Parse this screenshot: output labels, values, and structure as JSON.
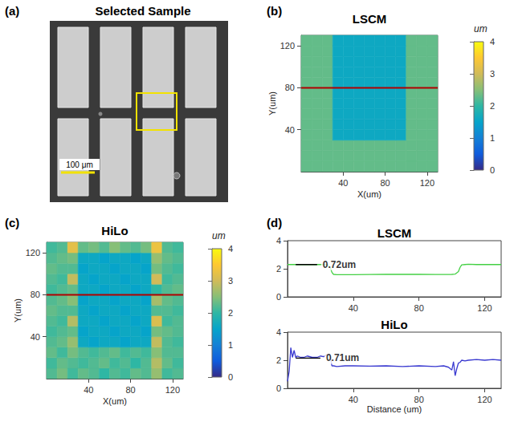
{
  "image_panel": {
    "panel": "(a)",
    "title": "Selected Sample",
    "scale_bar_label": "100 μm"
  },
  "chart_data": [
    {
      "panel": "(b)",
      "type": "heatmap",
      "title": "LSCM",
      "x_label": "X(um)",
      "y_label": "Y(um)",
      "x": [
        5,
        15,
        25,
        35,
        45,
        55,
        65,
        75,
        85,
        95,
        105,
        115,
        125
      ],
      "y": [
        5,
        15,
        25,
        35,
        45,
        55,
        65,
        75,
        85,
        95,
        105,
        115,
        125
      ],
      "cells": [
        [
          2.3,
          2.3,
          2.3,
          2.3,
          2.3,
          2.3,
          2.3,
          2.3,
          2.3,
          2.3,
          2.3,
          2.3,
          2.3
        ],
        [
          2.3,
          2.3,
          2.3,
          2.3,
          2.3,
          2.3,
          2.3,
          2.3,
          2.3,
          2.3,
          2.3,
          2.3,
          2.3
        ],
        [
          2.3,
          2.3,
          2.3,
          2.3,
          2.3,
          2.3,
          2.3,
          2.3,
          2.3,
          2.3,
          2.3,
          2.3,
          2.3
        ],
        [
          2.3,
          2.3,
          2.3,
          1.6,
          1.6,
          1.6,
          1.6,
          1.6,
          1.6,
          1.6,
          2.3,
          2.3,
          2.3
        ],
        [
          2.3,
          2.3,
          2.3,
          1.6,
          1.6,
          1.6,
          1.6,
          1.6,
          1.6,
          1.6,
          2.3,
          2.3,
          2.3
        ],
        [
          2.3,
          2.3,
          2.3,
          1.6,
          1.6,
          1.6,
          1.6,
          1.6,
          1.6,
          1.6,
          2.3,
          2.3,
          2.3
        ],
        [
          2.3,
          2.3,
          2.3,
          1.6,
          1.6,
          1.6,
          1.6,
          1.6,
          1.6,
          1.6,
          2.3,
          2.3,
          2.3
        ],
        [
          2.3,
          2.3,
          2.3,
          1.6,
          1.6,
          1.6,
          1.6,
          1.6,
          1.6,
          1.6,
          2.3,
          2.3,
          2.3
        ],
        [
          2.3,
          2.3,
          2.3,
          1.6,
          1.6,
          1.6,
          1.6,
          1.6,
          1.6,
          1.6,
          2.3,
          2.3,
          2.3
        ],
        [
          2.3,
          2.3,
          2.3,
          1.6,
          1.6,
          1.6,
          1.6,
          1.6,
          1.6,
          1.6,
          2.3,
          2.3,
          2.3
        ],
        [
          2.3,
          2.3,
          2.3,
          1.6,
          1.6,
          1.6,
          1.6,
          1.6,
          1.6,
          1.6,
          2.3,
          2.3,
          2.3
        ],
        [
          2.3,
          2.3,
          2.3,
          1.6,
          1.6,
          1.6,
          1.6,
          1.6,
          1.6,
          1.6,
          2.3,
          2.3,
          2.3
        ],
        [
          2.3,
          2.3,
          2.3,
          1.6,
          1.6,
          1.6,
          1.6,
          1.6,
          1.6,
          1.6,
          2.3,
          2.3,
          2.3
        ]
      ],
      "xlim": [
        0,
        130
      ],
      "ylim": [
        0,
        130
      ],
      "xticks": [
        40,
        80,
        120
      ],
      "yticks": [
        40,
        80,
        120
      ],
      "colorbar": {
        "label": "um",
        "range": [
          0,
          4
        ],
        "ticks": [
          0,
          1,
          2,
          3,
          4
        ]
      },
      "profile_line": {
        "color": "#b00000",
        "x": [
          0,
          130
        ],
        "y": [
          80,
          80
        ]
      }
    },
    {
      "panel": "(c)",
      "type": "heatmap",
      "title": "HiLo",
      "x_label": "X(um)",
      "y_label": "Y(um)",
      "x": [
        5,
        15,
        25,
        35,
        45,
        55,
        65,
        75,
        85,
        95,
        105,
        115,
        125
      ],
      "y": [
        5,
        15,
        25,
        35,
        45,
        55,
        65,
        75,
        85,
        95,
        105,
        115,
        125
      ],
      "cells": [
        [
          2.2,
          2.4,
          2.1,
          2.3,
          2.2,
          2.0,
          2.2,
          2.1,
          2.3,
          2.2,
          2.6,
          2.1,
          2.2
        ],
        [
          2.1,
          2.3,
          2.2,
          2.1,
          2.2,
          2.3,
          2.1,
          2.2,
          2.0,
          2.2,
          2.8,
          2.3,
          2.1
        ],
        [
          2.3,
          2.1,
          2.4,
          2.2,
          2.1,
          2.2,
          2.3,
          2.1,
          2.2,
          2.1,
          2.5,
          2.2,
          2.2
        ],
        [
          2.2,
          2.3,
          2.6,
          1.6,
          1.5,
          1.6,
          1.6,
          1.5,
          1.6,
          1.6,
          2.9,
          2.2,
          2.1
        ],
        [
          2.1,
          2.2,
          2.3,
          1.5,
          1.6,
          1.6,
          1.5,
          1.6,
          1.6,
          1.5,
          2.4,
          2.3,
          2.2
        ],
        [
          2.2,
          2.1,
          2.8,
          1.6,
          1.6,
          1.5,
          1.6,
          1.6,
          1.5,
          1.6,
          3.1,
          2.1,
          2.2
        ],
        [
          2.3,
          2.2,
          2.2,
          1.6,
          1.5,
          1.6,
          1.6,
          1.5,
          1.6,
          1.6,
          2.2,
          2.2,
          2.1
        ],
        [
          2.2,
          2.3,
          2.5,
          1.5,
          1.6,
          1.6,
          1.5,
          1.6,
          1.6,
          1.5,
          2.7,
          2.3,
          2.2
        ],
        [
          2.1,
          2.2,
          2.3,
          1.6,
          1.6,
          1.5,
          1.6,
          1.6,
          1.5,
          1.6,
          2.0,
          2.2,
          2.3
        ],
        [
          2.2,
          2.1,
          2.9,
          1.6,
          1.5,
          1.6,
          1.6,
          1.5,
          1.6,
          1.6,
          3.0,
          2.1,
          2.2
        ],
        [
          2.3,
          2.2,
          2.2,
          1.5,
          1.6,
          1.6,
          1.5,
          1.6,
          1.6,
          1.5,
          2.4,
          2.2,
          2.1
        ],
        [
          2.2,
          2.3,
          2.4,
          1.6,
          1.6,
          1.5,
          1.6,
          1.6,
          1.5,
          1.6,
          2.6,
          2.3,
          2.2
        ],
        [
          2.1,
          2.2,
          3.2,
          2.3,
          2.4,
          2.2,
          2.5,
          2.3,
          2.2,
          2.4,
          3.3,
          2.2,
          2.1
        ]
      ],
      "xlim": [
        0,
        130
      ],
      "ylim": [
        0,
        130
      ],
      "xticks": [
        40,
        80,
        120
      ],
      "yticks": [
        40,
        80,
        120
      ],
      "colorbar": {
        "label": "um",
        "range": [
          0,
          4
        ],
        "ticks": [
          0,
          1,
          2,
          3,
          4
        ]
      },
      "profile_line": {
        "color": "#b00000",
        "x": [
          0,
          130
        ],
        "y": [
          80,
          80
        ]
      }
    },
    {
      "panel": "(d)",
      "type": "line",
      "title": "LSCM",
      "x": [
        0,
        5,
        10,
        15,
        20,
        24,
        26,
        27,
        28,
        30,
        40,
        50,
        60,
        70,
        80,
        90,
        100,
        102,
        104,
        105,
        106,
        108,
        110,
        115,
        120,
        125,
        130
      ],
      "values": [
        2.3,
        2.31,
        2.3,
        2.31,
        2.3,
        2.29,
        2.1,
        1.75,
        1.6,
        1.58,
        1.58,
        1.59,
        1.6,
        1.6,
        1.6,
        1.59,
        1.6,
        1.62,
        1.8,
        2.1,
        2.28,
        2.3,
        2.32,
        2.3,
        2.3,
        2.31,
        2.3
      ],
      "color": "#44d044",
      "xlim": [
        0,
        130
      ],
      "ylim": [
        0,
        4
      ],
      "xticks": [
        40,
        80,
        120
      ],
      "yticks": [
        0,
        2,
        4
      ],
      "annotation": {
        "text": "0.72um",
        "x": [
          5,
          18
        ],
        "y": [
          2.3,
          2.3
        ]
      }
    },
    {
      "type": "line",
      "title": "HiLo",
      "x_label": "Distance (um)",
      "x": [
        0,
        1,
        2,
        3,
        4,
        5,
        6,
        8,
        10,
        12,
        15,
        18,
        20,
        22,
        24,
        26,
        27,
        28,
        30,
        35,
        40,
        50,
        60,
        70,
        80,
        90,
        95,
        98,
        100,
        101,
        102,
        103,
        104,
        105,
        106,
        108,
        110,
        115,
        120,
        125,
        130
      ],
      "values": [
        0.5,
        1.2,
        2.9,
        2.2,
        2.7,
        2.2,
        2.3,
        2.2,
        2.2,
        2.3,
        2.2,
        2.2,
        2.3,
        2.25,
        2.4,
        2.3,
        1.6,
        1.6,
        1.55,
        1.6,
        1.6,
        1.58,
        1.6,
        1.55,
        1.6,
        1.55,
        1.6,
        1.5,
        1.3,
        1.9,
        0.9,
        1.4,
        1.8,
        1.85,
        2.0,
        1.95,
        2.0,
        2.05,
        2.0,
        2.05,
        2.0
      ],
      "color": "#3a3ad0",
      "xlim": [
        0,
        130
      ],
      "ylim": [
        0,
        4
      ],
      "xticks": [
        40,
        80,
        120
      ],
      "yticks": [
        0,
        2,
        4
      ],
      "annotation": {
        "text": "0.71um",
        "x": [
          5,
          20
        ],
        "y": [
          2.15,
          2.15
        ]
      }
    }
  ]
}
